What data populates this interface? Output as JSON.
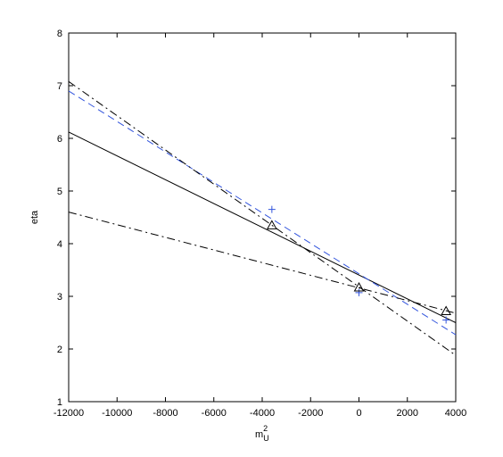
{
  "chart_data": {
    "type": "line",
    "xlabel": {
      "base": "m",
      "sub": "U",
      "sup": "2"
    },
    "ylabel": "eta",
    "xlim": [
      -12000,
      4000
    ],
    "xticks": [
      -12000,
      -10000,
      -8000,
      -6000,
      -4000,
      -2000,
      0,
      2000,
      4000
    ],
    "ylim": [
      1,
      8
    ],
    "yticks": [
      1,
      2,
      3,
      4,
      5,
      6,
      7,
      8
    ],
    "grid": false,
    "series": [
      {
        "color": "#000000",
        "linestyle": "solid",
        "x": [
          -12000,
          4000
        ],
        "values": [
          6.12,
          2.5
        ]
      },
      {
        "color": "#3355dd",
        "linestyle": "dashed",
        "x": [
          -12000,
          4000
        ],
        "values": [
          6.9,
          2.27
        ]
      },
      {
        "color": "#000000",
        "linestyle": "dashdot",
        "x": [
          -12000,
          4000
        ],
        "values": [
          7.08,
          1.88
        ]
      },
      {
        "color": "#000000",
        "linestyle": "dashdot",
        "x": [
          -12000,
          4000
        ],
        "values": [
          4.6,
          2.68
        ]
      },
      {
        "color": "#3355dd",
        "linestyle": "none",
        "marker": "plus",
        "x": [
          -3600,
          0,
          3600
        ],
        "values": [
          4.65,
          3.07,
          2.55
        ]
      },
      {
        "color": "#000000",
        "linestyle": "none",
        "marker": "triangle",
        "x": [
          -3600,
          0,
          3600
        ],
        "values": [
          4.35,
          3.17,
          2.72
        ]
      }
    ]
  }
}
